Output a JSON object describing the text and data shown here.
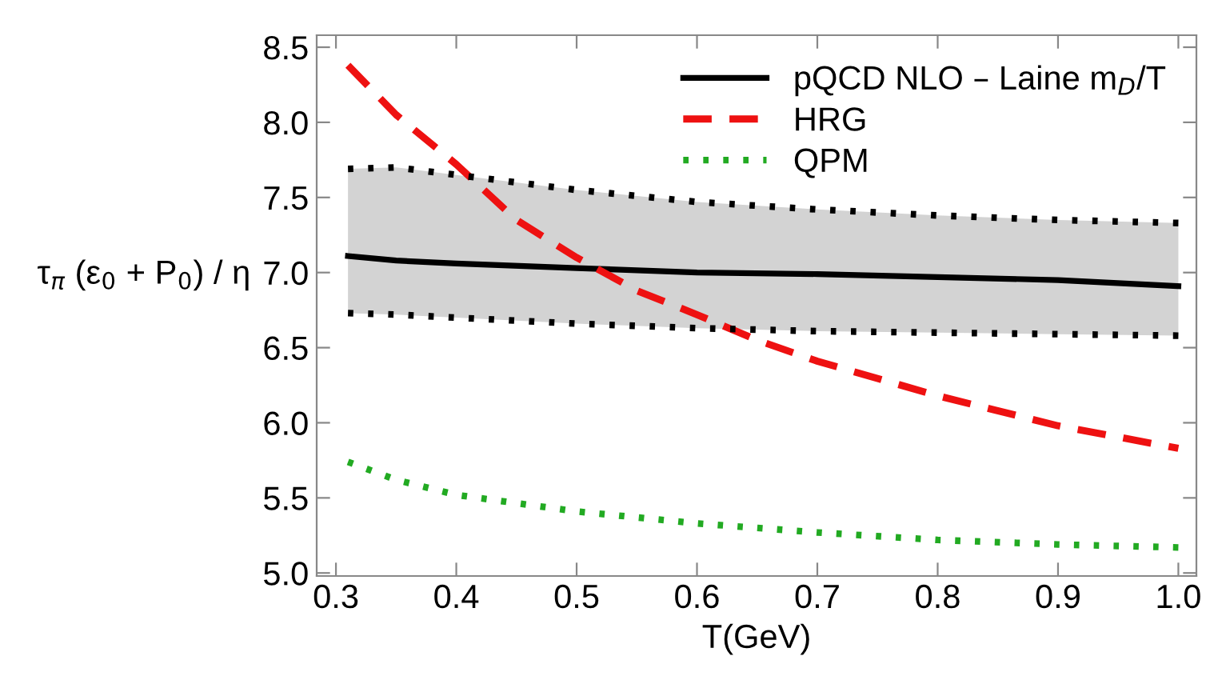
{
  "chart_data": {
    "type": "line",
    "xlabel": "T(GeV)",
    "ylabel": "τ$_{π}$ (ε$_{0}$ + P$_{0}$) / η",
    "xlim": [
      0.284,
      1.015
    ],
    "ylim": [
      4.98,
      8.58
    ],
    "xticks": [
      {
        "value": 0.3,
        "label": "0.3"
      },
      {
        "value": 0.4,
        "label": "0.4"
      },
      {
        "value": 0.5,
        "label": "0.5"
      },
      {
        "value": 0.6,
        "label": "0.6"
      },
      {
        "value": 0.7,
        "label": "0.7"
      },
      {
        "value": 0.8,
        "label": "0.8"
      },
      {
        "value": 0.9,
        "label": "0.9"
      },
      {
        "value": 1.0,
        "label": "1.0"
      }
    ],
    "yticks": [
      {
        "value": 5.0,
        "label": "5.0"
      },
      {
        "value": 5.5,
        "label": "5.5"
      },
      {
        "value": 6.0,
        "label": "6.0"
      },
      {
        "value": 6.5,
        "label": "6.5"
      },
      {
        "value": 7.0,
        "label": "7.0"
      },
      {
        "value": 7.5,
        "label": "7.5"
      },
      {
        "value": 8.0,
        "label": "8.0"
      },
      {
        "value": 8.5,
        "label": "8.5"
      }
    ],
    "grid": false,
    "legend": "top right",
    "series": [
      {
        "name": "pQCD NLO – Laine m$_{D}$/T",
        "color": "#000000",
        "line_style": "solid",
        "x": [
          0.31,
          0.35,
          0.4,
          0.5,
          0.6,
          0.7,
          0.8,
          0.9,
          1.0
        ],
        "values": [
          7.11,
          7.08,
          7.06,
          7.03,
          7.0,
          6.99,
          6.97,
          6.95,
          6.91
        ],
        "lower": [
          6.73,
          6.72,
          6.7,
          6.66,
          6.63,
          6.61,
          6.6,
          6.59,
          6.58
        ],
        "upper": [
          7.69,
          7.7,
          7.65,
          7.55,
          7.47,
          7.42,
          7.38,
          7.35,
          7.33
        ]
      },
      {
        "name": "HRG",
        "color": "#ee1111",
        "line_style": "dashed",
        "x": [
          0.31,
          0.35,
          0.4,
          0.45,
          0.5,
          0.55,
          0.6,
          0.65,
          0.7,
          0.8,
          0.9,
          1.0
        ],
        "values": [
          8.38,
          8.05,
          7.72,
          7.35,
          7.1,
          6.88,
          6.72,
          6.55,
          6.41,
          6.18,
          5.98,
          5.83
        ]
      },
      {
        "color": "#000000",
        "line_style": "dotted",
        "x": [
          0.31,
          0.35,
          0.4,
          0.5,
          0.6,
          0.7,
          0.8,
          0.9,
          1.0
        ],
        "values": [
          6.73,
          6.72,
          6.7,
          6.66,
          6.63,
          6.61,
          6.6,
          6.59,
          6.58
        ]
      },
      {
        "color": "#000000",
        "line_style": "dotted",
        "x": [
          0.31,
          0.35,
          0.4,
          0.5,
          0.6,
          0.7,
          0.8,
          0.9,
          1.0
        ],
        "values": [
          7.69,
          7.7,
          7.65,
          7.55,
          7.47,
          7.42,
          7.38,
          7.35,
          7.33
        ]
      },
      {
        "name": "QPM",
        "color": "#22aa22",
        "line_style": "dotted",
        "x": [
          0.31,
          0.35,
          0.4,
          0.5,
          0.6,
          0.7,
          0.8,
          0.9,
          1.0
        ],
        "values": [
          5.74,
          5.62,
          5.52,
          5.41,
          5.33,
          5.27,
          5.22,
          5.19,
          5.17
        ]
      }
    ]
  }
}
